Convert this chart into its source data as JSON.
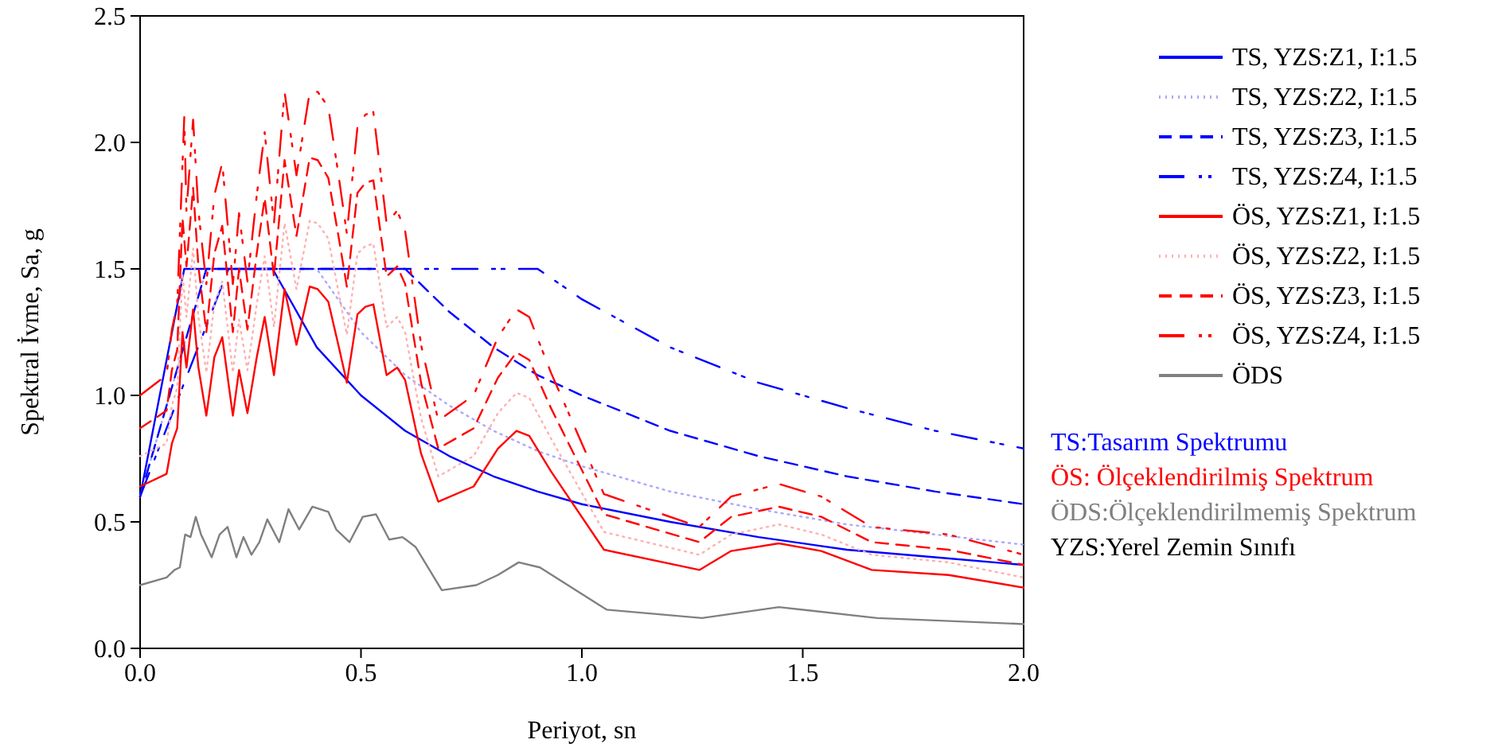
{
  "chart_data": {
    "type": "line",
    "xlabel": "Periyot, sn",
    "ylabel": "Spektral İvme, Sa, g",
    "xlim": [
      0,
      2
    ],
    "ylim": [
      0,
      2.5
    ],
    "xticks": [
      {
        "value": 0,
        "label": "0.0"
      },
      0.5,
      {
        "value": 1,
        "label": "1.0"
      },
      1.5,
      {
        "value": 2,
        "label": "2.0"
      }
    ],
    "yticks": [
      {
        "value": 0,
        "label": "0.0"
      },
      0.5,
      {
        "value": 1,
        "label": "1.0"
      },
      1.5,
      {
        "value": 2,
        "label": "2.0"
      },
      2.5
    ],
    "grid": false,
    "legend": "right",
    "marker": "none",
    "series": [
      {
        "name": "TS, YZS:Z1, I:1.5",
        "color": "#0000ff",
        "line_style": "solid",
        "x": [
          0,
          0.1,
          0.3,
          0.4,
          0.5,
          0.6,
          0.7,
          0.8,
          0.9,
          1.0,
          1.2,
          1.4,
          1.6,
          1.8,
          2.0
        ],
        "values": [
          0.6,
          1.5,
          1.5,
          1.19,
          1.0,
          0.86,
          0.76,
          0.68,
          0.62,
          0.57,
          0.5,
          0.44,
          0.39,
          0.36,
          0.33
        ]
      },
      {
        "name": "TS, YZS:Z2, I:1.5",
        "color": "#a8a8ff",
        "line_style": "dotted",
        "x": [
          0,
          0.15,
          0.4,
          0.5,
          0.6,
          0.7,
          0.8,
          0.9,
          1.0,
          1.2,
          1.4,
          1.6,
          1.8,
          2.0
        ],
        "values": [
          0.6,
          1.5,
          1.5,
          1.25,
          1.08,
          0.96,
          0.86,
          0.78,
          0.72,
          0.62,
          0.55,
          0.49,
          0.45,
          0.41
        ]
      },
      {
        "name": "TS, YZS:Z3, I:1.5",
        "color": "#0000ff",
        "line_style": "dashed",
        "x": [
          0,
          0.15,
          0.6,
          0.7,
          0.8,
          0.9,
          1.0,
          1.2,
          1.4,
          1.6,
          1.8,
          2.0
        ],
        "values": [
          0.6,
          1.5,
          1.5,
          1.33,
          1.19,
          1.08,
          1.0,
          0.86,
          0.76,
          0.68,
          0.62,
          0.57
        ]
      },
      {
        "name": "TS, YZS:Z4, I:1.5",
        "color": "#0000ff",
        "line_style": "dashdot",
        "x": [
          0,
          0.2,
          0.9,
          1.0,
          1.2,
          1.4,
          1.6,
          1.8,
          2.0
        ],
        "values": [
          0.6,
          1.5,
          1.5,
          1.38,
          1.19,
          1.05,
          0.95,
          0.86,
          0.79
        ]
      },
      {
        "name": "ÖS, YZS:Z1, I:1.5",
        "color": "#ff0000",
        "line_style": "solid",
        "x": [
          0,
          0.06,
          0.072,
          0.084,
          0.096,
          0.105,
          0.12,
          0.132,
          0.15,
          0.168,
          0.186,
          0.21,
          0.224,
          0.243,
          0.264,
          0.282,
          0.303,
          0.327,
          0.354,
          0.384,
          0.402,
          0.426,
          0.45,
          0.468,
          0.492,
          0.51,
          0.528,
          0.558,
          0.582,
          0.6,
          0.636,
          0.675,
          0.755,
          0.81,
          0.852,
          0.881,
          0.93,
          1.05,
          1.266,
          1.338,
          1.446,
          1.542,
          1.656,
          1.83,
          2.0
        ],
        "values": [
          0.64,
          0.69,
          0.81,
          0.87,
          1.25,
          1.11,
          1.34,
          1.11,
          0.92,
          1.15,
          1.23,
          0.92,
          1.1,
          0.93,
          1.15,
          1.31,
          1.08,
          1.42,
          1.2,
          1.43,
          1.42,
          1.37,
          1.19,
          1.05,
          1.32,
          1.35,
          1.36,
          1.08,
          1.11,
          1.06,
          0.77,
          0.58,
          0.64,
          0.79,
          0.86,
          0.84,
          0.7,
          0.39,
          0.31,
          0.385,
          0.415,
          0.385,
          0.31,
          0.29,
          0.24
        ]
      },
      {
        "name": "ÖS, YZS:Z2, I:1.5",
        "color": "#ffb0b0",
        "line_style": "dotted",
        "x": [
          0,
          0.06,
          0.072,
          0.084,
          0.096,
          0.105,
          0.12,
          0.132,
          0.15,
          0.168,
          0.186,
          0.21,
          0.224,
          0.243,
          0.264,
          0.282,
          0.303,
          0.327,
          0.354,
          0.384,
          0.402,
          0.426,
          0.45,
          0.468,
          0.492,
          0.51,
          0.528,
          0.558,
          0.582,
          0.6,
          0.636,
          0.675,
          0.755,
          0.81,
          0.852,
          0.881,
          0.93,
          1.05,
          1.266,
          1.338,
          1.446,
          1.542,
          1.656,
          1.83,
          2.0
        ],
        "values": [
          0.76,
          0.81,
          0.96,
          1.03,
          1.48,
          1.31,
          1.58,
          1.31,
          1.09,
          1.36,
          1.45,
          1.09,
          1.3,
          1.1,
          1.36,
          1.55,
          1.27,
          1.68,
          1.42,
          1.69,
          1.68,
          1.62,
          1.4,
          1.24,
          1.56,
          1.59,
          1.6,
          1.27,
          1.31,
          1.25,
          0.91,
          0.68,
          0.76,
          0.93,
          1.01,
          0.99,
          0.83,
          0.46,
          0.37,
          0.45,
          0.49,
          0.45,
          0.37,
          0.34,
          0.28
        ]
      },
      {
        "name": "ÖS, YZS:Z3, I:1.5",
        "color": "#ff0000",
        "line_style": "dashed",
        "x": [
          0,
          0.06,
          0.072,
          0.084,
          0.096,
          0.105,
          0.12,
          0.132,
          0.15,
          0.168,
          0.186,
          0.21,
          0.224,
          0.243,
          0.264,
          0.282,
          0.303,
          0.327,
          0.354,
          0.384,
          0.402,
          0.426,
          0.45,
          0.468,
          0.492,
          0.51,
          0.528,
          0.558,
          0.582,
          0.6,
          0.636,
          0.675,
          0.755,
          0.81,
          0.852,
          0.881,
          0.93,
          1.05,
          1.266,
          1.338,
          1.446,
          1.542,
          1.656,
          1.83,
          2.0
        ],
        "values": [
          0.87,
          0.94,
          1.1,
          1.18,
          1.7,
          1.51,
          1.82,
          1.51,
          1.25,
          1.56,
          1.67,
          1.25,
          1.5,
          1.26,
          1.56,
          1.78,
          1.47,
          1.93,
          1.63,
          1.94,
          1.93,
          1.86,
          1.62,
          1.43,
          1.8,
          1.84,
          1.85,
          1.47,
          1.51,
          1.44,
          1.05,
          0.79,
          0.87,
          1.07,
          1.17,
          1.14,
          0.95,
          0.53,
          0.42,
          0.52,
          0.56,
          0.52,
          0.42,
          0.39,
          0.33
        ]
      },
      {
        "name": "ÖS, YZS:Z4, I:1.5",
        "color": "#ff0000",
        "line_style": "dashdot",
        "x": [
          0,
          0.06,
          0.072,
          0.084,
          0.1,
          0.105,
          0.12,
          0.132,
          0.15,
          0.168,
          0.186,
          0.21,
          0.224,
          0.243,
          0.264,
          0.282,
          0.303,
          0.327,
          0.354,
          0.384,
          0.402,
          0.426,
          0.45,
          0.468,
          0.492,
          0.51,
          0.528,
          0.558,
          0.582,
          0.6,
          0.636,
          0.675,
          0.755,
          0.81,
          0.852,
          0.881,
          0.93,
          1.05,
          1.266,
          1.338,
          1.446,
          1.542,
          1.656,
          1.83,
          2.0
        ],
        "values": [
          1.0,
          1.08,
          1.26,
          1.36,
          2.1,
          1.73,
          2.09,
          1.73,
          1.44,
          1.79,
          1.92,
          1.44,
          1.72,
          1.45,
          1.79,
          2.04,
          1.68,
          2.2,
          1.87,
          2.2,
          2.2,
          2.14,
          1.86,
          1.64,
          2.06,
          2.11,
          2.12,
          1.68,
          1.73,
          1.65,
          1.2,
          0.9,
          1.0,
          1.23,
          1.34,
          1.31,
          1.09,
          0.61,
          0.48,
          0.6,
          0.65,
          0.6,
          0.48,
          0.45,
          0.37
        ]
      },
      {
        "name": "ÖDS",
        "color": "#808080",
        "line_style": "solid",
        "x": [
          0,
          0.06,
          0.078,
          0.09,
          0.102,
          0.114,
          0.126,
          0.138,
          0.162,
          0.18,
          0.198,
          0.218,
          0.234,
          0.252,
          0.27,
          0.288,
          0.315,
          0.336,
          0.36,
          0.39,
          0.426,
          0.444,
          0.474,
          0.504,
          0.534,
          0.564,
          0.594,
          0.624,
          0.683,
          0.761,
          0.81,
          0.857,
          0.905,
          1.056,
          1.272,
          1.446,
          1.668,
          2.0
        ],
        "values": [
          0.25,
          0.28,
          0.31,
          0.32,
          0.45,
          0.44,
          0.52,
          0.45,
          0.36,
          0.45,
          0.48,
          0.36,
          0.44,
          0.37,
          0.42,
          0.51,
          0.42,
          0.55,
          0.47,
          0.56,
          0.54,
          0.47,
          0.42,
          0.52,
          0.53,
          0.43,
          0.44,
          0.4,
          0.23,
          0.25,
          0.29,
          0.34,
          0.32,
          0.153,
          0.12,
          0.163,
          0.12,
          0.096
        ]
      }
    ],
    "annotations": [
      "TS:Tasarım Spektrumu",
      "ÖS: Ölçeklendirilmiş Spektrum",
      "ÖDS:Ölçeklendirilmemiş Spektrum",
      "YZS:Yerel Zemin Sınıfı"
    ]
  }
}
